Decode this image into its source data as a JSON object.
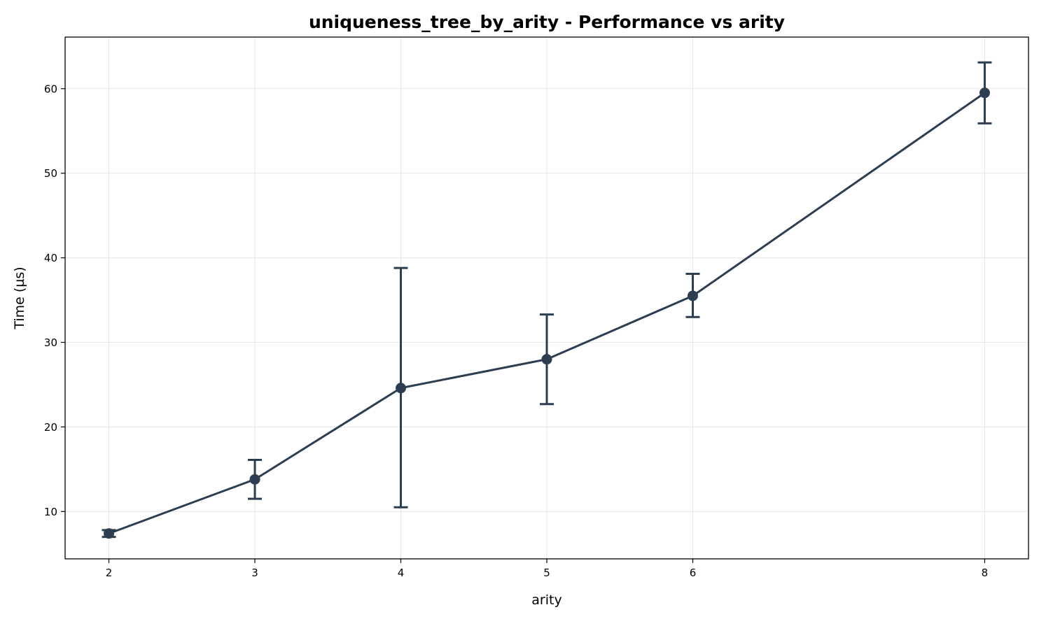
{
  "chart_data": {
    "type": "line",
    "title": "uniqueness_tree_by_arity - Performance vs arity",
    "xlabel": "arity",
    "ylabel": "Time (µs)",
    "x_ticks": [
      "2",
      "3",
      "4",
      "5",
      "6",
      "8"
    ],
    "y_ticks": [
      "10",
      "20",
      "30",
      "40",
      "50",
      "60"
    ],
    "xlim": [
      1.7,
      8.3
    ],
    "ylim": [
      4.4,
      66.1
    ],
    "grid": true,
    "series": [
      {
        "x": [
          2,
          3,
          4,
          5,
          6,
          8
        ],
        "y": [
          7.4,
          13.8,
          24.6,
          28.0,
          35.5,
          59.5
        ],
        "error_low": [
          7.0,
          11.5,
          10.5,
          22.7,
          33.0,
          55.9
        ],
        "error_high": [
          7.8,
          16.1,
          38.8,
          33.3,
          38.1,
          63.1
        ],
        "color": "#2c3e50"
      }
    ]
  }
}
